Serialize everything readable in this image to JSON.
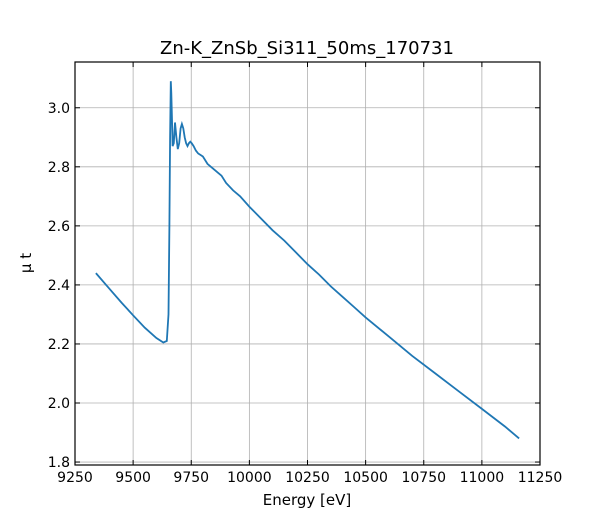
{
  "chart_data": {
    "type": "line",
    "title": "Zn-K_ZnSb_Si311_50ms_170731",
    "xlabel": "Energy [eV]",
    "ylabel": "μ t",
    "xlim": [
      9250,
      11250
    ],
    "ylim": [
      1.79,
      3.155
    ],
    "xticks": [
      9250,
      9500,
      9750,
      10000,
      10250,
      10500,
      10750,
      11000,
      11250
    ],
    "yticks": [
      1.8,
      2.0,
      2.2,
      2.4,
      2.6,
      2.8,
      3.0
    ],
    "ytick_labels": [
      "1.8",
      "2.0",
      "2.2",
      "2.4",
      "2.6",
      "2.8",
      "3.0"
    ],
    "grid": true,
    "line_color": "#1f77b4",
    "series": [
      {
        "x": [
          9340,
          9400,
          9450,
          9500,
          9550,
          9600,
          9630,
          9645,
          9652,
          9656,
          9659,
          9662,
          9664,
          9667,
          9670,
          9675,
          9680,
          9686,
          9692,
          9698,
          9704,
          9710,
          9716,
          9722,
          9728,
          9734,
          9740,
          9746,
          9752,
          9760,
          9770,
          9780,
          9790,
          9800,
          9820,
          9850,
          9880,
          9900,
          9930,
          9960,
          10000,
          10050,
          10100,
          10150,
          10200,
          10250,
          10300,
          10350,
          10400,
          10450,
          10500,
          10600,
          10700,
          10800,
          10900,
          11000,
          11100,
          11160
        ],
        "y": [
          2.44,
          2.385,
          2.34,
          2.297,
          2.255,
          2.22,
          2.205,
          2.21,
          2.3,
          2.6,
          2.9,
          3.09,
          3.05,
          2.96,
          2.87,
          2.88,
          2.95,
          2.9,
          2.86,
          2.88,
          2.93,
          2.945,
          2.93,
          2.9,
          2.88,
          2.87,
          2.88,
          2.885,
          2.88,
          2.87,
          2.855,
          2.845,
          2.84,
          2.835,
          2.81,
          2.79,
          2.77,
          2.745,
          2.72,
          2.7,
          2.665,
          2.625,
          2.585,
          2.55,
          2.51,
          2.47,
          2.435,
          2.395,
          2.36,
          2.325,
          2.29,
          2.225,
          2.16,
          2.1,
          2.04,
          1.98,
          1.92,
          1.88
        ]
      }
    ]
  }
}
